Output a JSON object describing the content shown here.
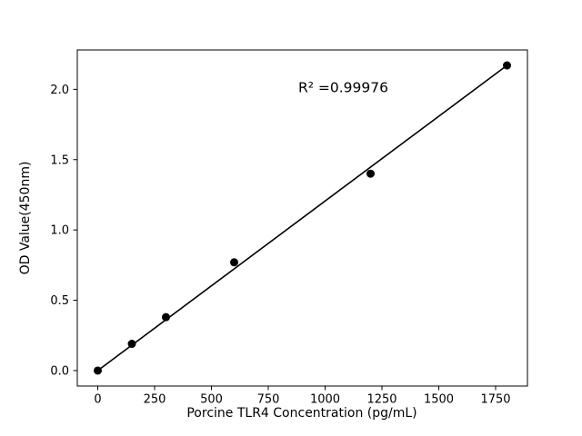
{
  "figure": {
    "background": "#ffffff"
  },
  "chart_data": {
    "type": "scatter",
    "title": "",
    "xlabel": "Porcine TLR4 Concentration (pg/mL)",
    "ylabel": "OD Value(450nm)",
    "x": [
      0,
      150,
      300,
      600,
      1200,
      1800
    ],
    "y": [
      0.0,
      0.19,
      0.38,
      0.77,
      1.4,
      2.17
    ],
    "fit_line": {
      "x1": 0,
      "y1": 0.0,
      "x2": 1800,
      "y2": 2.17
    },
    "annotation": {
      "text": "R² =0.99976",
      "x": 1080,
      "y": 1.98
    },
    "xlim": [
      -90,
      1890
    ],
    "ylim": [
      -0.11,
      2.28
    ],
    "xticks": [
      0,
      250,
      500,
      750,
      1000,
      1250,
      1500,
      1750
    ],
    "xtick_labels": [
      "0",
      "250",
      "500",
      "750",
      "1000",
      "1250",
      "1500",
      "1750"
    ],
    "yticks": [
      0.0,
      0.5,
      1.0,
      1.5,
      2.0
    ],
    "ytick_labels": [
      "0.0",
      "0.5",
      "1.0",
      "1.5",
      "2.0"
    ],
    "marker_color": "#000000",
    "line_color": "#000000",
    "spine_color": "#000000",
    "grid": false,
    "legend": null
  }
}
